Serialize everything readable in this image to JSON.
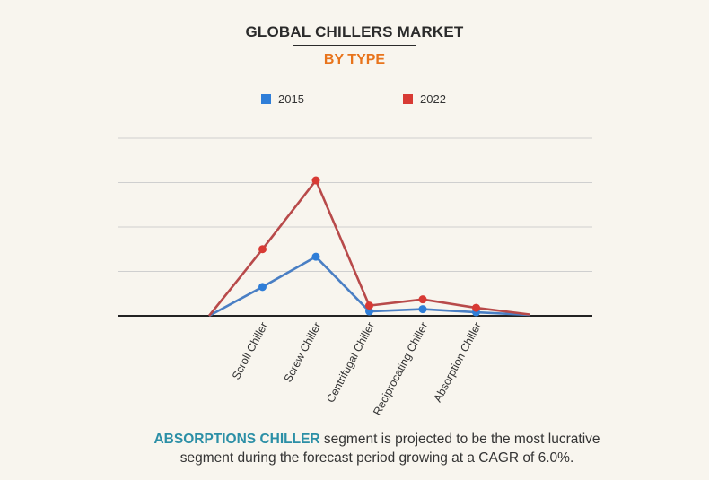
{
  "header": {
    "title": "GLOBAL CHILLERS MARKET",
    "subtitle": "BY TYPE"
  },
  "colors": {
    "subtitle": "#e8741c",
    "highlight": "#2b8fa6",
    "series_2015": "#2f7ed8",
    "series_2022": "#d83a34",
    "line_2015": "#4a7fc4",
    "line_2022": "#b84a4a",
    "grid": "#cfcfcf",
    "axis": "#222222"
  },
  "caption": {
    "highlight": "ABSORPTIONS CHILLER",
    "text": " segment is projected to be the most lucrative segment during the forecast period growing at a CAGR of 6.0%."
  },
  "chart_data": {
    "type": "line",
    "categories": [
      "Scroll Chiller",
      "Screw Chiller",
      "Centrifugal Chiller",
      "Reciprocating Chiller",
      "Absorption Chiller"
    ],
    "x": [
      0,
      1,
      2,
      3,
      4,
      5,
      6
    ],
    "ylim": [
      0,
      4
    ],
    "grid": true,
    "legend_position": "top-center",
    "series": [
      {
        "name": "2015",
        "values": [
          0,
          0.65,
          1.33,
          0.1,
          0.15,
          0.08,
          0.02
        ],
        "markers": [
          1,
          2,
          3,
          4,
          5
        ]
      },
      {
        "name": "2022",
        "values": [
          0,
          1.5,
          3.05,
          0.23,
          0.37,
          0.18,
          0.03
        ],
        "markers": [
          1,
          2,
          3,
          4,
          5
        ]
      }
    ]
  }
}
